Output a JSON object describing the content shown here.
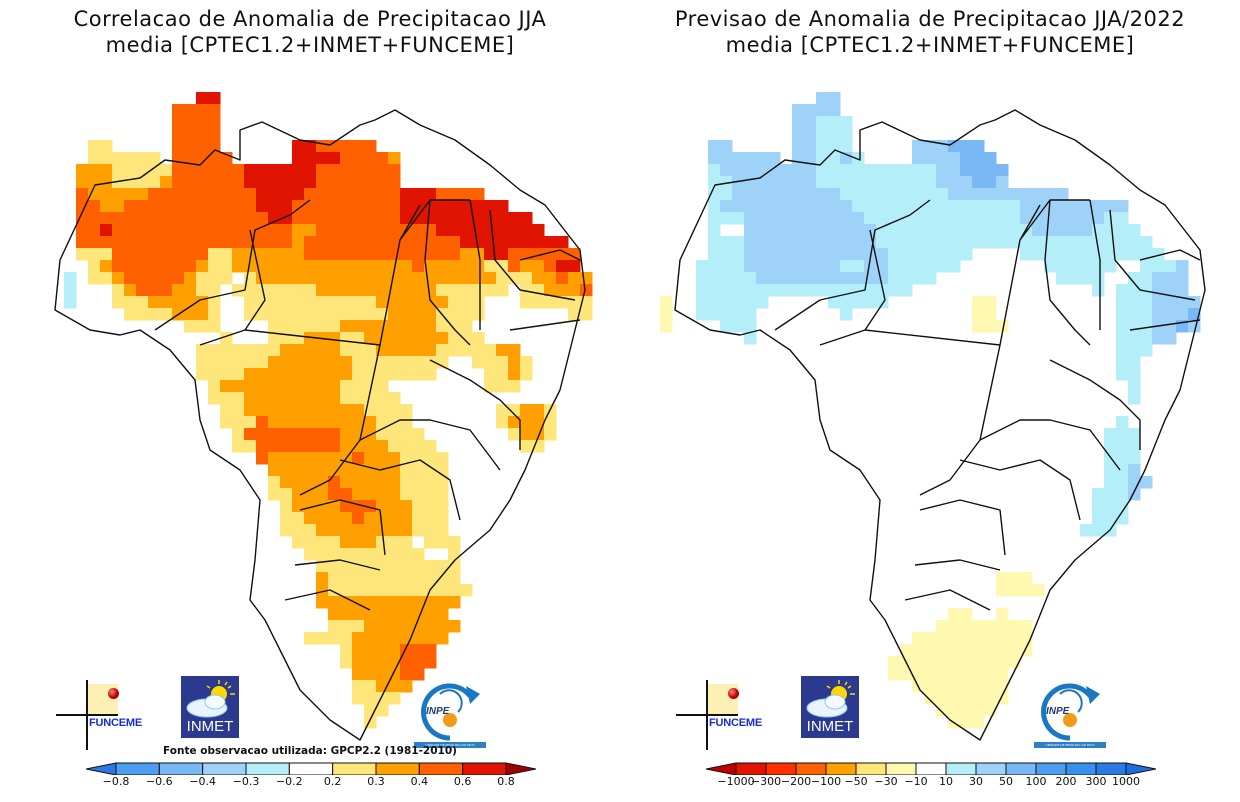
{
  "left": {
    "title_line1": "Correlacao de Anomalia de Precipitacao JJA",
    "title_line2": "media [CPTEC1.2+INMET+FUNCEME]",
    "source_note": "Fonte observacao utilizada: GPCP2.2 (1981-2010)",
    "colorbar": {
      "labels": [
        "-0.8",
        "-0.6",
        "-0.4",
        "-0.3",
        "-0.2",
        "0.2",
        "0.3",
        "0.4",
        "0.6",
        "0.8"
      ],
      "colors": [
        "#2a7ae4",
        "#4c9ef0",
        "#7ab8f5",
        "#9fd2f8",
        "#b4eef8",
        "#ffffff",
        "#fee67a",
        "#ffa000",
        "#ff6000",
        "#e01400",
        "#a00000"
      ]
    },
    "grid_legend": {
      "0": "none",
      "A": "#b4eef8",
      "Y": "#fee67a",
      "O": "#ffa000",
      "R": "#ff6000",
      "D": "#e01400"
    },
    "grid": [
      ".............................................",
      ".............DD..............................",
      "...........RRRR..............................",
      "...........RRRR..............................",
      "...........RRRR..............................",
      "....YY.....RRRR......DDRRRRR.................",
      "....YYYYYY.RRRRR.....DDDDRRRRO...............",
      "...OOOYYYYYRRRRRRDDDDDDRRRRRRR...............",
      "...OOOYYYYORRRRRRDDDDDDRRRRRRR...............",
      "...ROOOOORRRRRRRRRDDDDRRRRRRRRDDDRRRR........",
      "...RROORRRRRRRRRRRDDDRRRRRRRRRDDDDDDDDD......",
      "...RRRRRRRRRRRRRRRRDDRRRRRRRRRDDDDDDDDDDD.....",
      "...RRDRRRRRRRRRRRRRRROORRRRRRRRRRDDDDDDDDD....",
      "...RRRRRRRRRRRRRRRRRRORRRRRRRRRRRRRDDDDDDDDD..",
      "...YYYRRRRRRRRYYOOOOOORRRRRRRRRRRRROODDRRRRRR.",
      "....YORRRRRRROYYOOOOOOOOOOOOOOOROOOOOYYROORDD.",
      "..A.YYORRRRROYYY.YOOOOOOOOOOOOOOOOOOOOYYYOOROO",
      "..A...YORRROOYY.YYYYYYYOOOOOOOOOOYYYYYY.YYOOOR",
      "..A...YYYOOOOOY..YYYYYYYYYYYOOOOOOYYY...YYYYYY",
      ".......YYYYOOOY..YYYYYYYYYYYYOOOOYYYY.......YY",
      "............YYY....YYYYYYOOOOOOOOYYY..........",
      "...............Y...YYYOOOYYOOOOOOOYYY.........",
      ".............YYYYYYYOOOOOYYYOOOOOYYYYYOO......",
      ".............YYYYYYOOOOOOOYYYYYYYY..YYYOY.....",
      ".............YYYYOOOOOOOOOYYYYYYY....YYOY.....",
      "..............YOOOOOOOOOOYYYY........YYY......",
      "..............YYYOOOOOOOOYYYYY................",
      "...............YYOOOOOOOOOOYYYY.......YYOOY...",
      "...............YYYROOOOOOOOOYYY.......YOOOY...",
      "................YRRRRRRRROOOYYYY.......YOOY...",
      "................YYRRRRRRROOOOYYYY.......YY....",
      "..................ROOOOOOOROOOYYYY............",
      "...................OOOOOOOOOOOYYYY............",
      "...................YOOOOROOOOOYYYY............",
      "...................YYOOORROOOOYYYY............",
      "....................YOOOORRROOOYYY............",
      "....................YYOOOOROOOOYYY............",
      "....................YYYOOOOOOOOYYY............",
      ".....................YYYYOOOYYY.YYY...........",
      "......................YYYYYYYYYY..Y...........",
      ".......................YYYYYYYYYYYY...........",
      ".......................OYYYYYYYYYYY...........",
      ".......................OYYYYYYYYYYYY..........",
      ".......................OOOOOOOOOOOO...........",
      "........................OOOOOOOOOO............",
      "........................YYYOOOOOOOO...........",
      "......................YYYYOOOOOOOO............",
      ".........................YOOOORRR.............",
      ".........................YOOOORRR.............",
      "..........................OOOORR..............",
      "..........................YYOOO...............",
      "..........................YYYY................",
      "...........................YY.................",
      "...........................Y..................",
      "..............................................",
      ".............................................."
    ]
  },
  "right": {
    "title_line1": "Previsao de Anomalia de Precipitacao JJA/2022",
    "title_line2": "media [CPTEC1.2+INMET+FUNCEME]",
    "colorbar": {
      "labels": [
        "-1000",
        "-300",
        "-200",
        "-100",
        "-50",
        "-30",
        "-10",
        "10",
        "30",
        "50",
        "100",
        "200",
        "300",
        "1000"
      ],
      "colors": [
        "#c00000",
        "#e01400",
        "#ff3000",
        "#ff6000",
        "#ffa000",
        "#fee67a",
        "#fef8b0",
        "#ffffff",
        "#b4eef8",
        "#9fd2f8",
        "#7ab8f5",
        "#4c9ef0",
        "#3890ec",
        "#2a7ae4",
        "#1e6ee0"
      ]
    },
    "grid_legend": {
      "0": "none",
      "L": "#fef8b0",
      "C": "#b4eef8",
      "S": "#9fd2f8",
      "M": "#7ab8f5"
    },
    "grid": [
      ".............................................",
      ".............SS..............................",
      "...........SSSS..............................",
      "...........SSCCC.............................",
      "...........SSCCC.............................",
      "....SS.....SSCCC.....SSSMMM..................",
      "....SSSSSS.SSCCSC....SSSSMMM.................",
      "....CSSSSSSSSCCCCCCCCCCSSMMMM................",
      "....CCSSSSSSSCCCCCCCCCCSSSMMS................",
      "....CCSSSSSSSSSCCCCCCCCCSSSSSSSSSS...........",
      "....CSSSSSSSSSSSCCCCCCCCCCCCCCSSSSSSSSS......",
      "....CCCSSSSSSSSSSCCCCCCCCCCCCCSSSSSSSCC......",
      "....C..SSSSSSSSSSSCCCCCCCCCCCCCSSSSSCCCC.....",
      "....CCCSSSSSSSSSSSCCCCCCCCCCCCCCCCCCCCCCC....",
      "....CCCSSSSSSSSSSSSCCCCCCC....CCCCCCCCCCCC...",
      "...CCCCSSSSSSSSCCSSCCCCCC.......CCCCCC..CCCS.",
      "...CCCCCSSSSSSSSSSSCCCC..........CCCC..CCSSS.",
      "...CCCCCCCCCCCCCCCCCC...............C.CCCSSS.",
      "L..CCCCCC.....CCCCC.......LL..........CCCSSSS",
      "L..CCCCC.......C..........LL..........CCCSSSM",
      "L....CCC..................LLL.........CCCSSMS",
      ".......C..............................CCCSS..",
      "......................................CCC....",
      "......................................CC.....",
      "......................................CC.....",
      ".......................................C.....",
      ".......................................C.....",
      "..............................................",
      "......................................C.......",
      ".....................................CCC......",
      ".....................................CCC......",
      ".....................................CCC......",
      ".....................................CCS......",
      ".....................................CCSS.....",
      "....................................CCCS......",
      "....................................CCC.......",
      "....................................CCC.......",
      "...................................CCC........",
      "..............................................",
      "..............................................",
      "..............................................",
      "............................LLL...............",
      "............................LLLL..............",
      "..............................................",
      "........................LL..L.................",
      ".......................LLLLLLLL...............",
      ".....................LLLLLLLLLL...............",
      "....................LLLLLLLLLLL...............",
      "...................LLLLLLLLLLL................",
      "...................LLLLLLLLLL.................",
      ".....................LLLLLLLL.................",
      "......................LLLLLLL.................",
      ".......................LLLLL..................",
      "........................LLL...................",
      ".............................................."
    ]
  },
  "logos": {
    "funceme": "FUNCEME",
    "inmet": "INMET",
    "inpe": "INPE",
    "inpe_strip": "UNIDADE DE PESQUISA DO MCTI"
  }
}
